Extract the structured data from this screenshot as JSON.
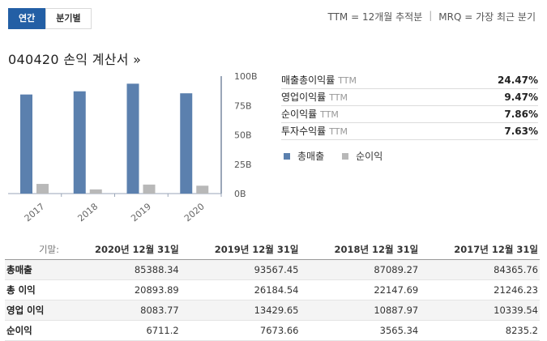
{
  "header": {
    "tabs": [
      {
        "label": "연간"
      },
      {
        "label": "분기별"
      }
    ],
    "ttm_note": "TTM = 12개월 추적분",
    "mrq_note": "MRQ = 가장 최근 분기"
  },
  "title": "040420 손익 계산서 »",
  "chart_data": {
    "type": "bar",
    "categories": [
      "2017",
      "2018",
      "2019",
      "2020"
    ],
    "series": [
      {
        "name": "총매출",
        "values": [
          84.37,
          87.09,
          93.57,
          85.39
        ],
        "color": "#5b80ae"
      },
      {
        "name": "순이익",
        "values": [
          8.24,
          3.57,
          7.67,
          6.71
        ],
        "color": "#b8b8b8"
      }
    ],
    "yticks": [
      "100B",
      "75B",
      "50B",
      "25B",
      "0B"
    ],
    "ylim": [
      0,
      100
    ],
    "grid": false
  },
  "ratios": [
    {
      "label": "매출총이익률",
      "ttm": "TTM",
      "value": "24.47%"
    },
    {
      "label": "영업이익률",
      "ttm": "TTM",
      "value": "9.47%"
    },
    {
      "label": "순이익률",
      "ttm": "TTM",
      "value": "7.86%"
    },
    {
      "label": "투자수익률",
      "ttm": "TTM",
      "value": "7.63%"
    }
  ],
  "series_legend": [
    {
      "label": "총매출",
      "color": "#5b80ae"
    },
    {
      "label": "순이익",
      "color": "#b8b8b8"
    }
  ],
  "table": {
    "period_label": "기말:",
    "columns": [
      "2020년 12월 31일",
      "2019년 12월 31일",
      "2018년 12월 31일",
      "2017년 12월 31일"
    ],
    "rows": [
      {
        "name": "총매출",
        "values": [
          "85388.34",
          "93567.45",
          "87089.27",
          "84365.76"
        ]
      },
      {
        "name": "총 이익",
        "values": [
          "20893.89",
          "26184.54",
          "22147.69",
          "21246.23"
        ]
      },
      {
        "name": "영업 이익",
        "values": [
          "8083.77",
          "13429.65",
          "10887.97",
          "10339.54"
        ]
      },
      {
        "name": "순이익",
        "values": [
          "6711.2",
          "7673.66",
          "3565.34",
          "8235.2"
        ]
      }
    ]
  }
}
